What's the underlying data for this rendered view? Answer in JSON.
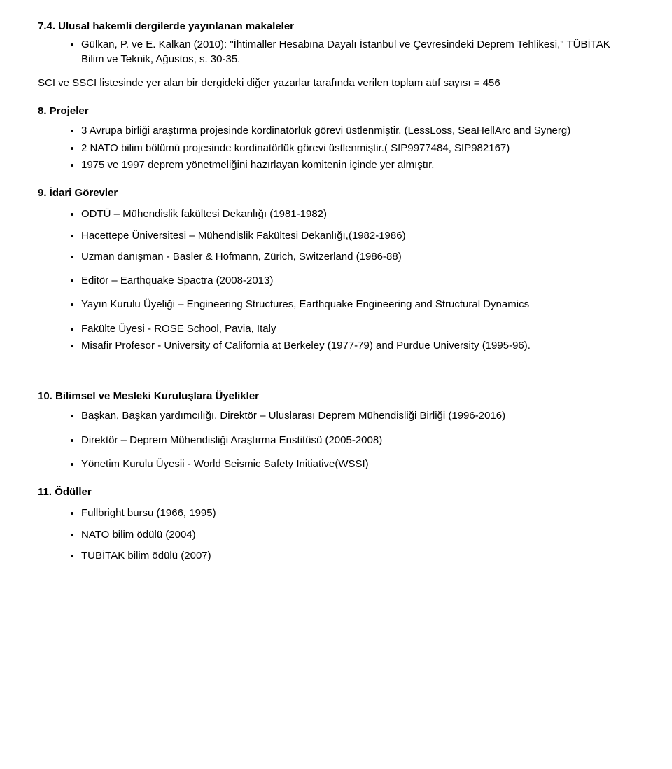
{
  "s74": {
    "title": "7.4. Ulusal hakemli dergilerde yayınlanan makaleler",
    "items": [
      "Gülkan, P. ve E. Kalkan (2010): \"İhtimaller Hesabına Dayalı İstanbul ve Çevresindeki Deprem Tehlikesi,\" TÜBİTAK Bilim ve Teknik, Ağustos, s. 30-35."
    ]
  },
  "sciNote": "SCI ve SSCI listesinde yer alan bir dergideki diğer yazarlar tarafında verilen toplam atıf sayısı = 456",
  "s8": {
    "title": "8.   Projeler",
    "items": [
      "3 Avrupa birliği araştırma projesinde kordinatörlük görevi üstlenmiştir. (LessLoss, SeaHellArc and Synerg)",
      "2 NATO bilim bölümü projesinde kordinatörlük görevi üstlenmiştir.( SfP9977484, SfP982167)",
      "1975 ve 1997 deprem yönetmeliğini hazırlayan komitenin içinde yer almıştır."
    ]
  },
  "s9": {
    "title": "9.   İdari Görevler",
    "items1": [
      "ODTÜ – Mühendislik fakültesi Dekanlığı (1981-1982)",
      "Hacettepe Üniversitesi – Mühendislik Fakültesi Dekanlığı,(1982-1986)",
      "Uzman danışman - Basler & Hofmann, Zürich, Switzerland (1986-88)"
    ],
    "items2": [
      "Editör – Earthquake Spactra (2008-2013)"
    ],
    "items3": [
      "Yayın Kurulu Üyeliği – Engineering Structures, Earthquake Engineering and Structural Dynamics"
    ],
    "items4": [
      "Fakülte Üyesi -  ROSE School, Pavia, Italy",
      "Misafir Profesor -  University of California at Berkeley (1977-79) and Purdue University (1995-96)."
    ]
  },
  "s10": {
    "title": "10.  Bilimsel ve Mesleki Kuruluşlara Üyelikler",
    "items1": [
      "Başkan, Başkan yardımcılığı, Direktör – Uluslarası Deprem Mühendisliği Birliği (1996-2016)"
    ],
    "items2": [
      "Direktör – Deprem Mühendisliği Araştırma Enstitüsü (2005-2008)"
    ],
    "items3": [
      "Yönetim Kurulu Üyesii - World Seismic Safety Initiative(WSSI)"
    ]
  },
  "s11": {
    "title": "11.  Ödüller",
    "items": [
      "Fullbright bursu (1966, 1995)",
      "NATO bilim ödülü (2004)",
      "TUBİTAK bilim ödülü (2007)"
    ]
  }
}
